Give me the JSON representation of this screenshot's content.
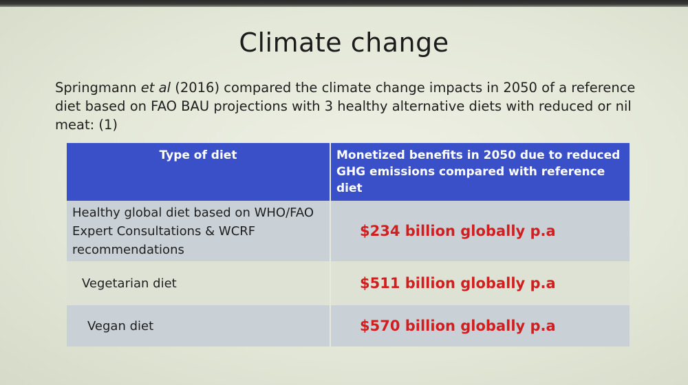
{
  "slide": {
    "title": "Climate  change",
    "intro": {
      "author": "Springmann ",
      "etal": "et al",
      "rest": " (2016) compared the climate change impacts in 2050 of a reference diet based on FAO BAU projections with 3 healthy alternative diets with reduced or nil meat: (1)"
    },
    "table": {
      "headers": [
        "Type of  diet",
        "Monetized benefits in 2050 due to reduced GHG emissions  compared with reference diet"
      ],
      "rows": [
        {
          "diet": "Healthy global diet based on WHO/FAO Expert Consultations & WCRF recommendations",
          "benefit": "$234 billion globally p.a"
        },
        {
          "diet": "Vegetarian diet",
          "benefit": "$511 billion globally p.a"
        },
        {
          "diet": "Vegan diet",
          "benefit": "$570 billion globally p.a"
        }
      ]
    },
    "colors": {
      "header_bg": "#3a50c8",
      "value_text": "#d21e1e",
      "row_dark": "#c9d0d6",
      "row_light": "#dde2d5"
    }
  }
}
